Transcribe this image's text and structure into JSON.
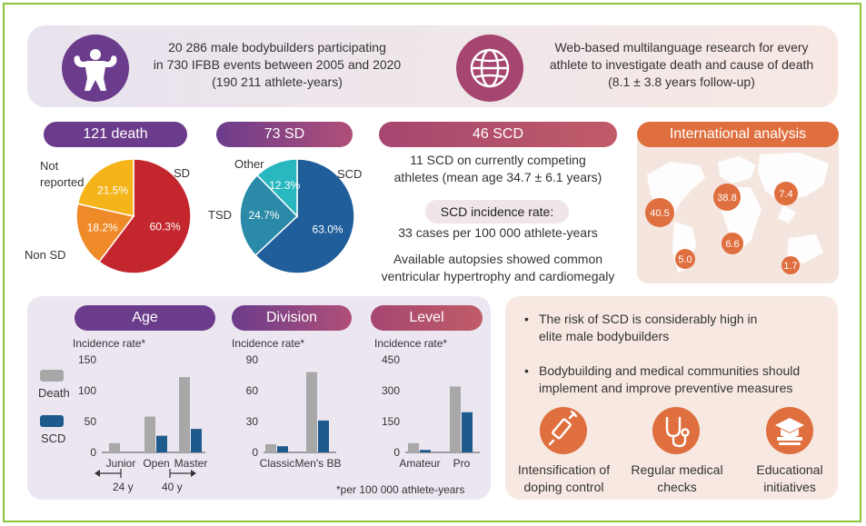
{
  "colors": {
    "purple": "#6c3c8c",
    "wine": "#a64670",
    "orange": "#df6f3f",
    "red": "#c4262e",
    "yellow": "#f4b41a",
    "blue": "#1f5e9a",
    "teal": "#2a8aa8",
    "cyan": "#2ab8c0",
    "gray": "#a8a8a8",
    "navy": "#1e5a8c",
    "border_green": "#8cc43c"
  },
  "header": {
    "left": {
      "icon": "bodybuilder-icon",
      "line1": "20 286 male bodybuilders participating",
      "line2": "in 730 IFBB events between 2005 and 2020",
      "line3": "(190 211 athlete-years)"
    },
    "right": {
      "icon": "globe-icon",
      "line1": "Web-based multilanguage research for every",
      "line2": "athlete to investigate death and cause of death",
      "line3": "(8.1 ± 3.8 years follow-up)"
    }
  },
  "panels": {
    "deaths": {
      "title": "121 death"
    },
    "sd": {
      "title": "73 SD"
    },
    "scd": {
      "title": "46 SCD",
      "line1": "11 SCD on currently competing",
      "line2": "athletes (mean age 34.7 ± 6.1 years)",
      "incidence_label": "SCD incidence rate:",
      "incidence_value": "33 cases per 100 000 athlete-years",
      "autopsy_line1": "Available autopsies showed common",
      "autopsy_line2": "ventricular hypertrophy and cardiomegaly"
    },
    "international": {
      "title": "International analysis",
      "map_icon": "world-map-icon",
      "bubbles": [
        "40.5",
        "38.8",
        "7.4",
        "6.6",
        "5.0",
        "1.7"
      ]
    }
  },
  "chart_data": [
    {
      "type": "pie",
      "title": "121 death",
      "slices": [
        {
          "label": "SD",
          "value": 60.3,
          "display": "60.3%",
          "color": "#c4262e"
        },
        {
          "label": "Non SD",
          "value": 18.2,
          "display": "18.2%",
          "color": "#ef8a28"
        },
        {
          "label": "Not reported",
          "value": 21.5,
          "display": "21.5%",
          "color": "#f4b41a"
        }
      ]
    },
    {
      "type": "pie",
      "title": "73 SD",
      "slices": [
        {
          "label": "SCD",
          "value": 63.0,
          "display": "63.0%",
          "color": "#1f5e9a"
        },
        {
          "label": "TSD",
          "value": 24.7,
          "display": "24.7%",
          "color": "#2a8aa8"
        },
        {
          "label": "Other",
          "value": 12.3,
          "display": "12.3%",
          "color": "#2ab8c0"
        }
      ]
    },
    {
      "type": "bar",
      "title": "Age",
      "ylabel": "Incidence rate*",
      "ylim": [
        0,
        150
      ],
      "yticks": [
        "150",
        "100",
        "50",
        "0"
      ],
      "categories": [
        "Junior",
        "Open",
        "Master"
      ],
      "series": [
        {
          "name": "Death",
          "values": [
            15,
            58,
            122
          ],
          "color": "#a8a8a8"
        },
        {
          "name": "SCD",
          "values": [
            0,
            27,
            38
          ],
          "color": "#1e5a8c"
        }
      ],
      "age_marks": [
        "24 y",
        "40 y"
      ]
    },
    {
      "type": "bar",
      "title": "Division",
      "ylabel": "Incidence rate*",
      "ylim": [
        0,
        90
      ],
      "yticks": [
        "90",
        "60",
        "30",
        "0"
      ],
      "categories": [
        "Classic",
        "Men's BB"
      ],
      "series": [
        {
          "name": "Death",
          "values": [
            8,
            78
          ],
          "color": "#a8a8a8"
        },
        {
          "name": "SCD",
          "values": [
            6,
            31
          ],
          "color": "#1e5a8c"
        }
      ]
    },
    {
      "type": "bar",
      "title": "Level",
      "ylabel": "Incidence rate*",
      "ylim": [
        0,
        450
      ],
      "yticks": [
        "450",
        "300",
        "150",
        "0"
      ],
      "categories": [
        "Amateur",
        "Pro"
      ],
      "series": [
        {
          "name": "Death",
          "values": [
            45,
            320
          ],
          "color": "#a8a8a8"
        },
        {
          "name": "SCD",
          "values": [
            12,
            195
          ],
          "color": "#1e5a8c"
        }
      ]
    }
  ],
  "legend": {
    "death": "Death",
    "scd": "SCD"
  },
  "footnote": "*per 100 000 athlete-years",
  "conclusions": {
    "bullet1_line1": "The risk of SCD is considerably high in",
    "bullet1_line2": "elite male bodybuilders",
    "bullet2_line1": "Bodybuilding and medical communities should",
    "bullet2_line2": "implement and improve preventive measures",
    "items": [
      {
        "icon": "syringe-icon",
        "line1": "Intensification of",
        "line2": "doping control"
      },
      {
        "icon": "stethoscope-icon",
        "line1": "Regular medical",
        "line2": "checks"
      },
      {
        "icon": "graduation-cap-icon",
        "line1": "Educational",
        "line2": "initiatives"
      }
    ]
  }
}
